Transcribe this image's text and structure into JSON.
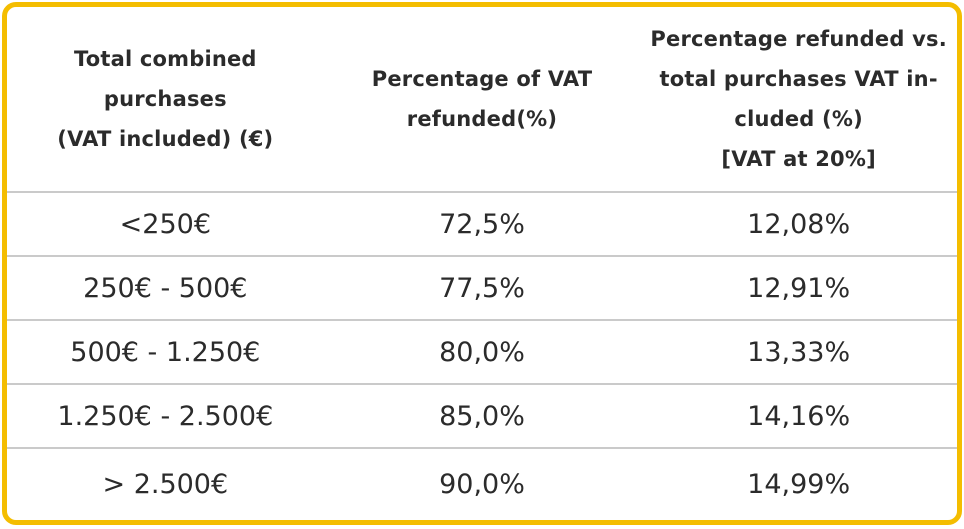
{
  "page": {
    "background_color": "#FFFFFF"
  },
  "table": {
    "border_color": "#F4BD00",
    "separator_color": "#CACACA",
    "text_color": "#2B2B2B",
    "headers": {
      "col1_lines": [
        "Total combined",
        "purchases",
        "(VAT included) (€)"
      ],
      "col2_lines": [
        "Percentage of VAT",
        "refunded(%)"
      ],
      "col3_lines": [
        "Percentage refunded vs.",
        "total purchases VAT in-",
        "cluded (%)",
        "[VAT at 20%]"
      ]
    },
    "rows": [
      {
        "range": "<250€",
        "vat_refunded": "72,5%",
        "refund_vs_total": "12,08%"
      },
      {
        "range": "250€ - 500€",
        "vat_refunded": "77,5%",
        "refund_vs_total": "12,91%"
      },
      {
        "range": "500€ - 1.250€",
        "vat_refunded": "80,0%",
        "refund_vs_total": "13,33%"
      },
      {
        "range": "1.250€ - 2.500€",
        "vat_refunded": "85,0%",
        "refund_vs_total": "14,16%"
      },
      {
        "range": "> 2.500€",
        "vat_refunded": "90,0%",
        "refund_vs_total": "14,99%"
      }
    ]
  },
  "chart_data": {
    "type": "table",
    "title": "",
    "columns": [
      "Total combined purchases (VAT included) (€)",
      "Percentage of VAT refunded(%)",
      "Percentage refunded vs. total purchases VAT included (%) [VAT at 20%]"
    ],
    "rows": [
      [
        "<250€",
        "72,5%",
        "12,08%"
      ],
      [
        "250€ - 500€",
        "77,5%",
        "12,91%"
      ],
      [
        "500€ - 1.250€",
        "80,0%",
        "13,33%"
      ],
      [
        "1.250€ - 2.500€",
        "85,0%",
        "14,16%"
      ],
      [
        "> 2.500€",
        "90,0%",
        "14,99%"
      ]
    ],
    "numeric": {
      "vat_refunded_pct": [
        72.5,
        77.5,
        80.0,
        85.0,
        90.0
      ],
      "refund_vs_total_purchases_pct": [
        12.08,
        12.91,
        13.33,
        14.16,
        14.99
      ],
      "vat_rate_pct": 20
    },
    "layout_hints": {
      "grid": "horizontal row separators only",
      "header_position": "top",
      "cell_alignment": "center"
    }
  }
}
